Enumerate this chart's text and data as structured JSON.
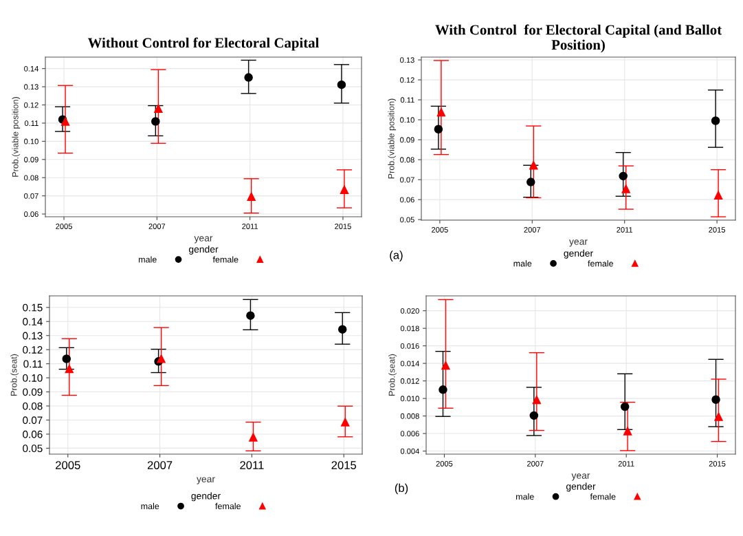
{
  "chart_data": [
    {
      "type": "scatter",
      "title": "Without Control for Electoral Capital",
      "xlabel": "year",
      "ylabel": "Prob.(viable position)",
      "legend_title": "gender",
      "legend": "bottom",
      "grid": true,
      "categories": [
        "2005",
        "2007",
        "2011",
        "2015"
      ],
      "ylim": [
        0.0585,
        0.1463
      ],
      "yticks": [
        {
          "value": 0.06,
          "label": "0.06"
        },
        {
          "value": 0.07,
          "label": "0.07"
        },
        {
          "value": 0.08,
          "label": "0.08"
        },
        {
          "value": 0.09,
          "label": "0.09"
        },
        {
          "value": 0.1,
          "label": "0.10"
        },
        {
          "value": 0.11,
          "label": "0.11"
        },
        {
          "value": 0.12,
          "label": "0.12"
        },
        {
          "value": 0.13,
          "label": "0.13"
        },
        {
          "value": 0.14,
          "label": "0.14"
        }
      ],
      "series": [
        {
          "name": "male",
          "color": "#000000",
          "marker": "circle",
          "values": [
            0.112,
            0.1109,
            0.1351,
            0.1311
          ],
          "errors": [
            [
              0.1054,
              0.119
            ],
            [
              0.103,
              0.1196
            ],
            [
              0.1263,
              0.1446
            ],
            [
              0.121,
              0.1422
            ]
          ]
        },
        {
          "name": "female",
          "color": "#ff0000",
          "marker": "triangle",
          "values": [
            0.1109,
            0.118,
            0.0696,
            0.0734
          ],
          "errors": [
            [
              0.0935,
              0.1307
            ],
            [
              0.0989,
              0.1394
            ],
            [
              0.0605,
              0.0794
            ],
            [
              0.0634,
              0.0843
            ]
          ]
        }
      ]
    },
    {
      "type": "scatter",
      "title": "With Control  for Electoral Capital (and Ballot Position)",
      "xlabel": "year",
      "ylabel": "Prob.(viable position)",
      "legend_title": "gender",
      "legend": "bottom",
      "grid": true,
      "annotations": [
        "(a)"
      ],
      "categories": [
        "2005",
        "2007",
        "2011",
        "2015"
      ],
      "ylim": [
        0.0497,
        0.1314
      ],
      "yticks": [
        {
          "value": 0.05,
          "label": "0.05"
        },
        {
          "value": 0.06,
          "label": "0.06"
        },
        {
          "value": 0.07,
          "label": "0.07"
        },
        {
          "value": 0.08,
          "label": "0.08"
        },
        {
          "value": 0.09,
          "label": "0.09"
        },
        {
          "value": 0.1,
          "label": "0.10"
        },
        {
          "value": 0.11,
          "label": "0.11"
        },
        {
          "value": 0.12,
          "label": "0.12"
        },
        {
          "value": 0.13,
          "label": "0.13"
        }
      ],
      "series": [
        {
          "name": "male",
          "color": "#000000",
          "marker": "circle",
          "values": [
            0.0953,
            0.0688,
            0.0718,
            0.0995
          ],
          "errors": [
            [
              0.0853,
              0.1068
            ],
            [
              0.0612,
              0.0772
            ],
            [
              0.0617,
              0.0836
            ],
            [
              0.0862,
              0.1149
            ]
          ]
        },
        {
          "name": "female",
          "color": "#ff0000",
          "marker": "triangle",
          "values": [
            0.1038,
            0.0772,
            0.0654,
            0.0622
          ],
          "errors": [
            [
              0.0826,
              0.1297
            ],
            [
              0.0609,
              0.0969
            ],
            [
              0.0552,
              0.0769
            ],
            [
              0.0514,
              0.075
            ]
          ]
        }
      ]
    },
    {
      "type": "scatter",
      "xlabel": "year",
      "ylabel": "Prob.(seat)",
      "legend_title": "gender",
      "legend": "bottom",
      "grid": true,
      "categories": [
        "2005",
        "2007",
        "2011",
        "2015"
      ],
      "ylim": [
        0.0458,
        0.1582
      ],
      "yticks": [
        {
          "value": 0.05,
          "label": "0.05"
        },
        {
          "value": 0.06,
          "label": "0.06"
        },
        {
          "value": 0.07,
          "label": "0.07"
        },
        {
          "value": 0.08,
          "label": "0.08"
        },
        {
          "value": 0.09,
          "label": "0.09"
        },
        {
          "value": 0.1,
          "label": "0.10"
        },
        {
          "value": 0.11,
          "label": "0.11"
        },
        {
          "value": 0.12,
          "label": "0.12"
        },
        {
          "value": 0.13,
          "label": "0.13"
        },
        {
          "value": 0.14,
          "label": "0.14"
        },
        {
          "value": 0.15,
          "label": "0.15"
        }
      ],
      "series": [
        {
          "name": "male",
          "color": "#000000",
          "marker": "circle",
          "values": [
            0.1135,
            0.1116,
            0.1442,
            0.1344
          ],
          "errors": [
            [
              0.1061,
              0.1214
            ],
            [
              0.1037,
              0.1203
            ],
            [
              0.1341,
              0.1556
            ],
            [
              0.1239,
              0.1463
            ]
          ]
        },
        {
          "name": "female",
          "color": "#ff0000",
          "marker": "triangle",
          "values": [
            0.1064,
            0.1136,
            0.0578,
            0.0685
          ],
          "errors": [
            [
              0.0876,
              0.1278
            ],
            [
              0.0945,
              0.1357
            ],
            [
              0.0481,
              0.0685
            ],
            [
              0.0581,
              0.0799
            ]
          ]
        }
      ]
    },
    {
      "type": "scatter",
      "xlabel": "year",
      "ylabel": "Prob.(seat)",
      "legend_title": "gender",
      "legend": "bottom",
      "grid": true,
      "annotations": [
        "(b)"
      ],
      "categories": [
        "2005",
        "2007",
        "2011",
        "2015"
      ],
      "ylim": [
        0.00365,
        0.0217
      ],
      "yticks": [
        {
          "value": 0.004,
          "label": "0.004"
        },
        {
          "value": 0.006,
          "label": "0.006"
        },
        {
          "value": 0.008,
          "label": "0.008"
        },
        {
          "value": 0.01,
          "label": "0.010"
        },
        {
          "value": 0.012,
          "label": "0.012"
        },
        {
          "value": 0.014,
          "label": "0.014"
        },
        {
          "value": 0.016,
          "label": "0.016"
        },
        {
          "value": 0.018,
          "label": "0.018"
        },
        {
          "value": 0.02,
          "label": "0.020"
        }
      ],
      "series": [
        {
          "name": "male",
          "color": "#000000",
          "marker": "circle",
          "values": [
            0.011,
            0.00805,
            0.00906,
            0.00987
          ],
          "errors": [
            [
              0.00795,
              0.01537
            ],
            [
              0.00577,
              0.01127
            ],
            [
              0.00645,
              0.01281
            ],
            [
              0.00678,
              0.01446
            ]
          ]
        },
        {
          "name": "female",
          "color": "#ff0000",
          "marker": "triangle",
          "values": [
            0.01377,
            0.00985,
            0.00628,
            0.00792
          ],
          "errors": [
            [
              0.00889,
              0.02127
            ],
            [
              0.00635,
              0.01522
            ],
            [
              0.00405,
              0.00957
            ],
            [
              0.00509,
              0.0122
            ]
          ]
        }
      ]
    }
  ]
}
